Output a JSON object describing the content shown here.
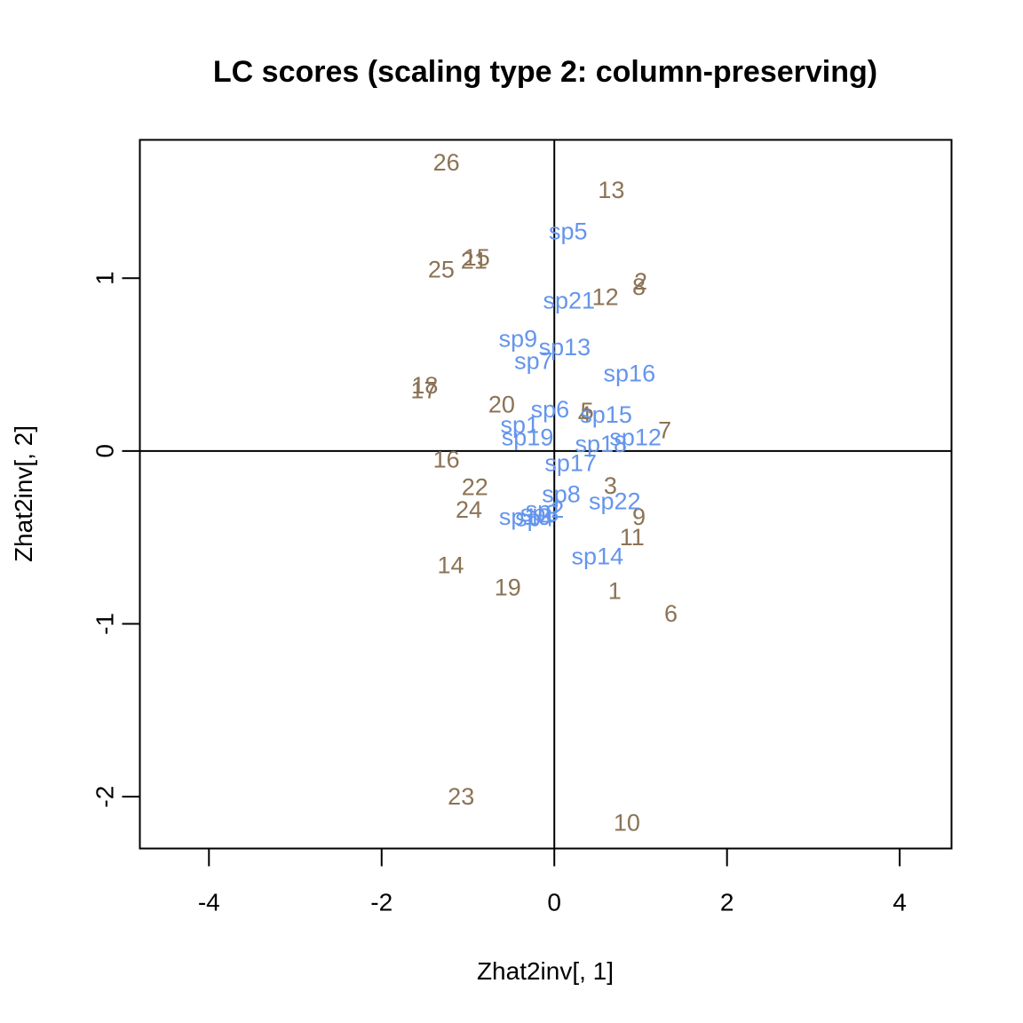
{
  "chart_data": {
    "type": "scatter",
    "title": "LC scores (scaling type 2: column-preserving)",
    "xlabel": "Zhat2inv[, 1]",
    "ylabel": "Zhat2inv[, 2]",
    "xlim": [
      -4.8,
      4.6
    ],
    "ylim": [
      -2.3,
      1.8
    ],
    "xticks": [
      -4,
      -2,
      0,
      2,
      4
    ],
    "yticks": [
      -2,
      -1,
      0,
      1
    ],
    "reference_lines": {
      "x": 0,
      "y": 0
    },
    "grid": false,
    "series": [
      {
        "color": "#8B7355",
        "points": [
          {
            "label": "1",
            "x": 0.7,
            "y": -0.81
          },
          {
            "label": "2",
            "x": 1.0,
            "y": 0.98
          },
          {
            "label": "3",
            "x": 0.65,
            "y": -0.2
          },
          {
            "label": "4",
            "x": 0.35,
            "y": 0.21
          },
          {
            "label": "5",
            "x": 0.38,
            "y": 0.23
          },
          {
            "label": "6",
            "x": 1.35,
            "y": -0.94
          },
          {
            "label": "7",
            "x": 1.28,
            "y": 0.12
          },
          {
            "label": "8",
            "x": 0.98,
            "y": 0.95
          },
          {
            "label": "9",
            "x": 0.98,
            "y": -0.38
          },
          {
            "label": "10",
            "x": 0.84,
            "y": -2.15
          },
          {
            "label": "11",
            "x": 0.9,
            "y": -0.5
          },
          {
            "label": "12",
            "x": 0.59,
            "y": 0.89
          },
          {
            "label": "13",
            "x": 0.66,
            "y": 1.51
          },
          {
            "label": "14",
            "x": -1.2,
            "y": -0.66
          },
          {
            "label": "15",
            "x": -0.9,
            "y": 1.12
          },
          {
            "label": "16",
            "x": -1.25,
            "y": -0.05
          },
          {
            "label": "17",
            "x": -1.51,
            "y": 0.35
          },
          {
            "label": "18",
            "x": -1.5,
            "y": 0.38
          },
          {
            "label": "19",
            "x": -0.54,
            "y": -0.79
          },
          {
            "label": "20",
            "x": -0.61,
            "y": 0.27
          },
          {
            "label": "21",
            "x": -0.93,
            "y": 1.1
          },
          {
            "label": "22",
            "x": -0.92,
            "y": -0.21
          },
          {
            "label": "23",
            "x": -1.08,
            "y": -2.0
          },
          {
            "label": "24",
            "x": -0.99,
            "y": -0.34
          },
          {
            "label": "25",
            "x": -1.31,
            "y": 1.05
          },
          {
            "label": "26",
            "x": -1.25,
            "y": 1.67
          }
        ]
      },
      {
        "color": "#6495ED",
        "points": [
          {
            "label": "sp5",
            "x": 0.16,
            "y": 1.27
          },
          {
            "label": "sp21",
            "x": 0.17,
            "y": 0.87
          },
          {
            "label": "sp9",
            "x": -0.42,
            "y": 0.65
          },
          {
            "label": "sp13",
            "x": 0.12,
            "y": 0.6
          },
          {
            "label": "sp7",
            "x": -0.24,
            "y": 0.52
          },
          {
            "label": "sp16",
            "x": 0.87,
            "y": 0.45
          },
          {
            "label": "sp6",
            "x": -0.05,
            "y": 0.24
          },
          {
            "label": "sp15",
            "x": 0.6,
            "y": 0.21
          },
          {
            "label": "sp1",
            "x": -0.4,
            "y": 0.15
          },
          {
            "label": "sp19",
            "x": -0.31,
            "y": 0.08
          },
          {
            "label": "sp12",
            "x": 0.94,
            "y": 0.08
          },
          {
            "label": "sp18",
            "x": 0.54,
            "y": 0.04
          },
          {
            "label": "sp17",
            "x": 0.19,
            "y": -0.07
          },
          {
            "label": "sp8",
            "x": 0.08,
            "y": -0.25
          },
          {
            "label": "sp22",
            "x": 0.7,
            "y": -0.29
          },
          {
            "label": "sp2",
            "x": -0.11,
            "y": -0.34
          },
          {
            "label": "sp3",
            "x": -0.17,
            "y": -0.36
          },
          {
            "label": "sp10",
            "x": -0.34,
            "y": -0.38
          },
          {
            "label": "sp4",
            "x": -0.23,
            "y": -0.39
          },
          {
            "label": "sp14",
            "x": 0.5,
            "y": -0.61
          }
        ]
      }
    ]
  }
}
